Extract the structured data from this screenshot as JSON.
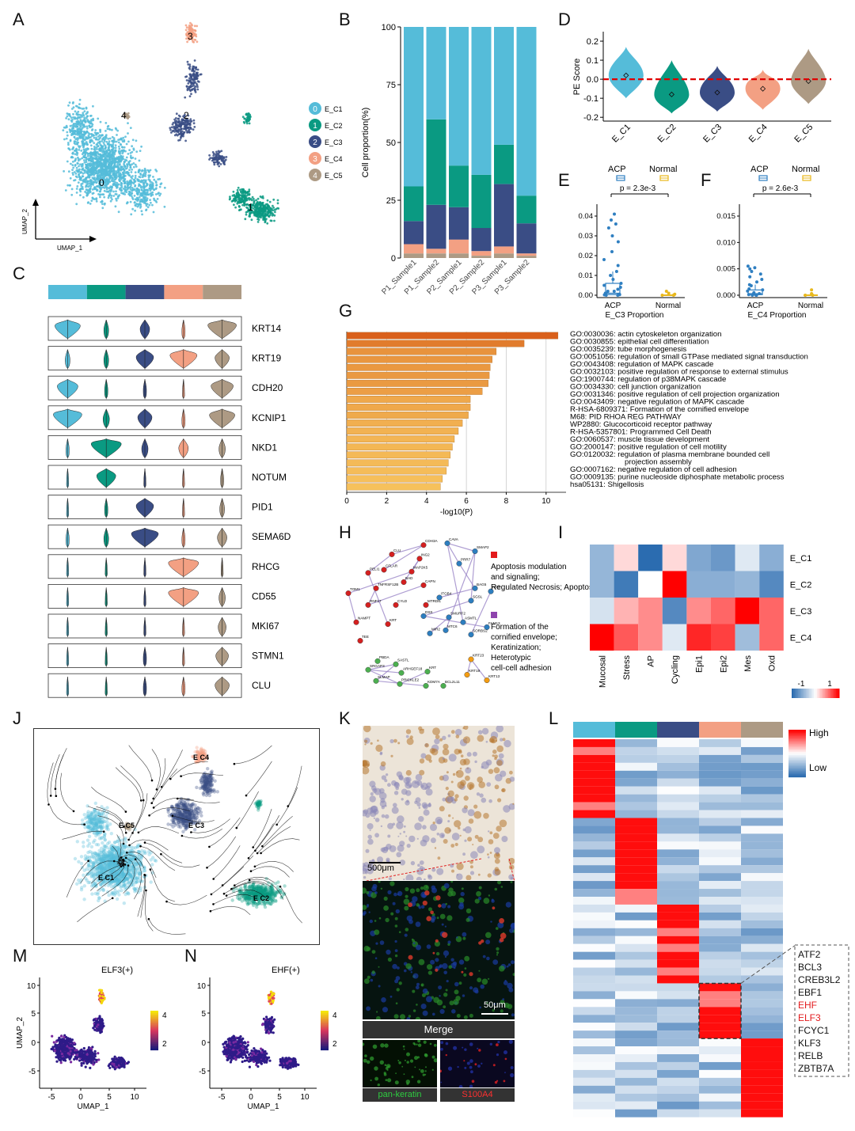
{
  "panel_letters": [
    "A",
    "B",
    "C",
    "D",
    "E",
    "F",
    "G",
    "H",
    "I",
    "J",
    "K",
    "L",
    "M",
    "N"
  ],
  "colors": {
    "E_C1": "#55bcd9",
    "E_C2": "#0a9a82",
    "E_C3": "#3a4d85",
    "E_C4": "#f3a083",
    "E_C5": "#ad9a84",
    "go_dark": "#d9601a",
    "go_light": "#f6c15c",
    "acp": "#2f7fc1",
    "normal": "#e8b81c",
    "heat_low": "#2b6cb0",
    "heat_high": "#ff0000"
  },
  "umap_a": {
    "x_label": "UMAP_1",
    "y_label": "UMAP_2",
    "cluster_labels": [
      "0",
      "1",
      "2",
      "3",
      "4"
    ],
    "legend": [
      {
        "num": "0",
        "name": "E_C1"
      },
      {
        "num": "1",
        "name": "E_C2"
      },
      {
        "num": "2",
        "name": "E_C3"
      },
      {
        "num": "3",
        "name": "E_C4"
      },
      {
        "num": "4",
        "name": "E_C5"
      }
    ]
  },
  "chart_data": [
    {
      "panel": "B",
      "type": "bar",
      "stacked": true,
      "ylabel": "Cell proportion(%)",
      "ylim": [
        0,
        100
      ],
      "yticks": [
        0,
        25,
        50,
        75,
        100
      ],
      "categories": [
        "P1_Sample1",
        "P1_Sample2",
        "P2_Sample1",
        "P2_Sample2",
        "P3_Sample1",
        "P3_Sample2"
      ],
      "series": [
        {
          "name": "E_C5",
          "values": [
            2,
            2,
            2,
            1,
            2,
            1
          ]
        },
        {
          "name": "E_C4",
          "values": [
            4,
            2,
            6,
            2,
            3,
            1
          ]
        },
        {
          "name": "E_C3",
          "values": [
            10,
            19,
            14,
            10,
            27,
            13
          ]
        },
        {
          "name": "E_C2",
          "values": [
            15,
            37,
            18,
            23,
            17,
            12
          ]
        },
        {
          "name": "E_C1",
          "values": [
            69,
            40,
            60,
            64,
            51,
            73
          ]
        }
      ]
    },
    {
      "panel": "D",
      "type": "violin",
      "ylabel": "PE Score",
      "ylim": [
        -0.22,
        0.25
      ],
      "yticks": [
        -0.2,
        -0.1,
        0.0,
        0.1,
        0.2
      ],
      "ytick_labels": [
        "-0.2",
        "-0.1",
        "0.0",
        "0.1",
        "0.2"
      ],
      "threshold": 0.0,
      "categories": [
        "E_C1",
        "E_C2",
        "E_C3",
        "E_C4",
        "E_C5"
      ],
      "medians": [
        0.02,
        -0.08,
        -0.07,
        -0.05,
        -0.01
      ],
      "tops": [
        0.17,
        0.1,
        0.07,
        0.05,
        0.16
      ],
      "bottoms": [
        -0.1,
        -0.18,
        -0.17,
        -0.16,
        -0.13
      ]
    },
    {
      "panel": "E",
      "type": "scatter",
      "ylim": [
        0,
        0.044
      ],
      "yticks": [
        0.0,
        0.01,
        0.02,
        0.03,
        0.04
      ],
      "ytick_labels": [
        "0.00",
        "0.01",
        "0.02",
        "0.03",
        "0.04"
      ],
      "categories": [
        "ACP",
        "Normal"
      ],
      "xlabel": "E_C3 Proportion",
      "pvalue": "p = 2.3e-3",
      "legend": [
        "ACP",
        "Normal"
      ],
      "acp_points": [
        0.041,
        0.038,
        0.036,
        0.034,
        0.03,
        0.027,
        0.022,
        0.018,
        0.015,
        0.012,
        0.01,
        0.008,
        0.006,
        0.005,
        0.004,
        0.003,
        0.002,
        0.002,
        0.001,
        0.001,
        0.0005,
        0.0003,
        0.0002,
        0.0,
        0.0
      ],
      "normal_points": [
        0.002,
        0.001,
        0.0005,
        0.0,
        0.0
      ],
      "acp_box": [
        0.0,
        0.0003,
        0.001,
        0.006,
        0.012
      ]
    },
    {
      "panel": "F",
      "type": "scatter",
      "ylim": [
        0,
        0.0165
      ],
      "yticks": [
        0.0,
        0.005,
        0.01,
        0.015
      ],
      "ytick_labels": [
        "0.000",
        "0.005",
        "0.010",
        "0.015"
      ],
      "categories": [
        "ACP",
        "Normal"
      ],
      "xlabel": "E_C4 Proportion",
      "pvalue": "p = 2.6e-3",
      "legend": [
        "ACP",
        "Normal"
      ],
      "acp_points": [
        0.0055,
        0.0052,
        0.005,
        0.0045,
        0.004,
        0.0035,
        0.003,
        0.0025,
        0.002,
        0.0018,
        0.0012,
        0.001,
        0.0008,
        0.0005,
        0.0003,
        0.0002,
        0.0001,
        0.0,
        0.0,
        0.0
      ],
      "normal_points": [
        0.001,
        0.0003,
        0.0,
        0.0
      ],
      "acp_box": [
        0.0,
        0.0001,
        0.0003,
        0.001,
        0.002
      ]
    },
    {
      "panel": "G",
      "type": "bar",
      "orientation": "horizontal",
      "xlabel": "-log10(P)",
      "xlim": [
        0,
        11
      ],
      "xticks": [
        0,
        2,
        4,
        6,
        8,
        10
      ],
      "categories": [
        "GO:0030036: actin cytoskeleton organization",
        "GO:0030855: epithelial cell differentiation",
        "GO:0035239: tube morphogenesis",
        "GO:0051056: regulation of small GTPase mediated signal transduction",
        "GO:0043408: regulation of MAPK cascade",
        "GO:0032103: positive regulation of response to external stimulus",
        "GO:1900744: regulation of p38MAPK cascade",
        "GO:0034330: cell junction organization",
        "GO:0031346: positive regulation of cell projection organization",
        "GO:0043409: negative regulation of MAPK cascade",
        "R-HSA-6809371: Formation of the cornified envelope",
        "M68: PID RHOA REG PATHWAY",
        "WP2880: Glucocorticoid receptor pathway",
        "R-HSA-5357801: Programmed Cell Death",
        "GO:0060537: muscle tissue development",
        "GO:2000147: positive regulation of cell motility",
        "GO:0120032: regulation of plasma membrane bounded cell projection assembly",
        "GO:0007162: negative regulation of cell adhesion",
        "GO:0009135: purine nucleoside diphosphate metabolic process",
        "hsa05131: Shigellosis"
      ],
      "values": [
        10.6,
        8.9,
        7.5,
        7.3,
        7.2,
        7.15,
        7.1,
        6.8,
        6.2,
        6.2,
        6.1,
        5.8,
        5.6,
        5.4,
        5.3,
        5.2,
        5.1,
        5.0,
        4.8,
        4.7
      ]
    },
    {
      "panel": "I",
      "type": "heatmap",
      "rows": [
        "E_C1",
        "E_C2",
        "E_C3",
        "E_C4"
      ],
      "cols": [
        "Mucosal",
        "Stress",
        "AP",
        "Cycling",
        "Epi1",
        "Epi2",
        "Mes",
        "Oxd"
      ],
      "values": [
        [
          -0.5,
          0.15,
          -1.0,
          0.15,
          -0.6,
          -0.7,
          -0.15,
          -0.55
        ],
        [
          -0.5,
          -0.9,
          0.0,
          1.0,
          -0.55,
          -0.55,
          -0.5,
          -0.8
        ],
        [
          -0.2,
          0.3,
          0.45,
          -0.8,
          0.45,
          0.6,
          1.0,
          0.6
        ],
        [
          1.0,
          0.65,
          0.45,
          -0.15,
          0.85,
          0.75,
          -0.45,
          0.6
        ]
      ],
      "legend_min": "-1",
      "legend_max": "1"
    }
  ],
  "violin_genes": {
    "genes": [
      "KRT14",
      "KRT19",
      "CDH20",
      "KCNIP1",
      "NKD1",
      "NOTUM",
      "PID1",
      "SEMA6D",
      "RHCG",
      "CD55",
      "MKI67",
      "STMN1",
      "CLU"
    ],
    "widths": [
      [
        0.8,
        0.15,
        0.3,
        0.1,
        0.9
      ],
      [
        0.15,
        0.15,
        0.55,
        0.85,
        0.45
      ],
      [
        0.65,
        0.1,
        0.1,
        0.05,
        0.7
      ],
      [
        0.9,
        0.2,
        0.45,
        0.1,
        0.8
      ],
      [
        0.1,
        0.95,
        0.2,
        0.3,
        0.2
      ],
      [
        0.05,
        0.6,
        0.05,
        0.05,
        0.1
      ],
      [
        0.05,
        0.1,
        0.55,
        0.05,
        0.15
      ],
      [
        0.1,
        0.15,
        0.85,
        0.1,
        0.3
      ],
      [
        0.05,
        0.05,
        0.05,
        0.95,
        0.05
      ],
      [
        0.05,
        0.05,
        0.05,
        0.95,
        0.2
      ],
      [
        0.05,
        0.05,
        0.05,
        0.05,
        0.25
      ],
      [
        0.05,
        0.05,
        0.1,
        0.05,
        0.4
      ],
      [
        0.05,
        0.05,
        0.1,
        0.1,
        0.45
      ]
    ]
  },
  "network_h": {
    "nodes_red": [
      "CDH3A",
      "CLU",
      "ING2",
      "PELI1",
      "CFLAR",
      "MAP2K5",
      "TNFRSF12B",
      "BAD",
      "RNF17",
      "CAPN",
      "TOM1",
      "CYLD",
      "MTRDIL",
      "NAMPT",
      "KRT",
      "TEE"
    ],
    "nodes_blue": [
      "CAVA",
      "SMAP2",
      "PRR7",
      "BAG5",
      "RPS",
      "SGSL",
      "ITGB4",
      "DSS",
      "SMURF2",
      "ASMTL",
      "MTC6",
      "MIR2",
      "SORBS2",
      "FAM13"
    ],
    "nodes_green": [
      "PBDA",
      "SRGAP3",
      "SASTL",
      "ARHGEF18",
      "SLMAP",
      "PRICKLE2",
      "KRT",
      "KDM7A",
      "BCL2L11"
    ],
    "nodes_orange": [
      "KRT23",
      "KRT19",
      "KRT13"
    ],
    "legend_red": "Apoptosis modulation and signaling; Regulated Necrosis; Apoptosis",
    "legend_purple": "Formation of the cornified envelope; Keratinization; Heterotypic cell-cell adhesion"
  },
  "velocity_j": {
    "labels": [
      "E C4",
      "E C5",
      "E C3",
      "E C1",
      "E C2"
    ]
  },
  "micro_k": {
    "scale_top": "500μm",
    "scale_mid": "50μm",
    "merge_label": "Merge",
    "channel_green": "pan-keratin",
    "channel_red": "S100A4"
  },
  "heat_l": {
    "legend_high": "High",
    "legend_low": "Low",
    "genes": [
      "ATF2",
      "BCL3",
      "CREB3L2",
      "EBF1",
      "EHF",
      "ELF3",
      "FCYC1",
      "KLF3",
      "RELB",
      "ZBTB7A"
    ],
    "highlighted": [
      "EHF",
      "ELF3"
    ],
    "highlight_color": "#e31a1c"
  },
  "umap_m": {
    "title": "ELF3(+)",
    "xlabel": "UMAP_1",
    "ylabel": "UMAP_2",
    "xticks": [
      "-5",
      "0",
      "5",
      "10"
    ],
    "yticks": [
      "10",
      "5",
      "0",
      "-5"
    ],
    "legend": [
      "4",
      "2"
    ]
  },
  "umap_n": {
    "title": "EHF(+)",
    "xlabel": "UMAP_1",
    "xticks": [
      "-5",
      "0",
      "5",
      "10"
    ],
    "yticks": [
      "10",
      "5",
      "0",
      "-5"
    ],
    "legend": [
      "4",
      "2"
    ]
  }
}
